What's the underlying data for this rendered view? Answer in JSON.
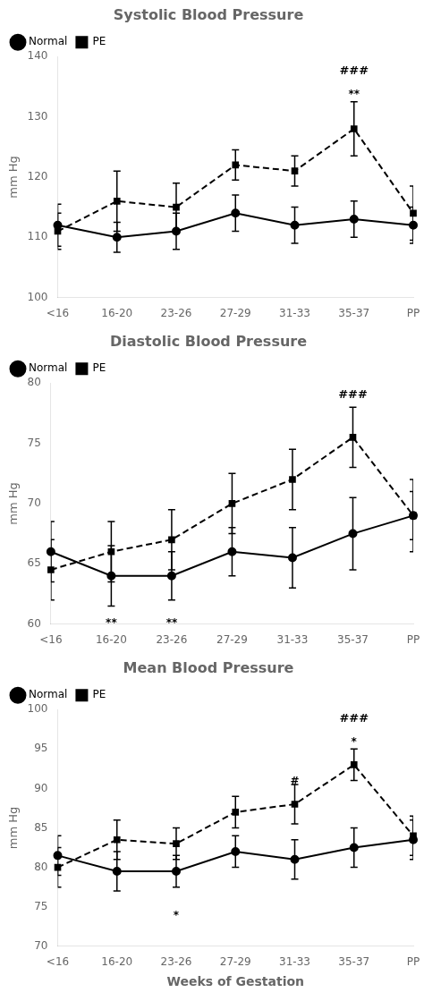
{
  "chart_data": [
    {
      "type": "line",
      "title": "Systolic Blood Pressure",
      "y_label": "mm Hg",
      "categories": [
        "<16",
        "16-20",
        "23-26",
        "27-29",
        "31-33",
        "35-37",
        "PP"
      ],
      "series": [
        {
          "name": "Normal",
          "color": "#000000",
          "marker": "circle",
          "line_style": "solid",
          "values": [
            112,
            110,
            111,
            114,
            112,
            113,
            112
          ],
          "errors": [
            3.5,
            2.5,
            3.0,
            3.0,
            3.0,
            3.0,
            3.0
          ]
        },
        {
          "name": "PE",
          "color": "#000000",
          "marker": "square",
          "line_style": "dashed",
          "values": [
            111,
            116,
            115,
            122,
            121,
            128,
            114
          ],
          "errors": [
            3.0,
            5.0,
            4.0,
            2.5,
            2.5,
            4.5,
            4.5
          ]
        }
      ],
      "ylim": [
        100,
        140
      ],
      "yticks": [
        100,
        110,
        120,
        130,
        140
      ],
      "grid": false,
      "legend": "upper left",
      "annotations": [
        {
          "x": "35-37",
          "y": 138.5,
          "text": "###"
        },
        {
          "x": "35-37",
          "y": 134.5,
          "text": "**"
        }
      ]
    },
    {
      "type": "line",
      "title": "Diastolic Blood Pressure",
      "y_label": "mm Hg",
      "categories": [
        "<16",
        "16-20",
        "23-26",
        "27-29",
        "31-33",
        "35-37",
        "PP"
      ],
      "series": [
        {
          "name": "Normal",
          "color": "#000000",
          "marker": "circle",
          "line_style": "solid",
          "values": [
            66,
            64,
            64,
            66,
            65.5,
            67.5,
            69
          ],
          "errors": [
            2.5,
            2.5,
            2.0,
            2.0,
            2.5,
            3.0,
            3.0
          ]
        },
        {
          "name": "PE",
          "color": "#000000",
          "marker": "square",
          "line_style": "dashed",
          "values": [
            64.5,
            66,
            67,
            70,
            72,
            75.5,
            69
          ],
          "errors": [
            2.5,
            2.5,
            2.5,
            2.5,
            2.5,
            2.5,
            2.0
          ]
        }
      ],
      "ylim": [
        60,
        80
      ],
      "yticks": [
        60,
        65,
        70,
        75,
        80
      ],
      "grid": false,
      "legend": "upper left",
      "annotations": [
        {
          "x": "35-37",
          "y": 79.5,
          "text": "###"
        },
        {
          "x": "16-20",
          "y": 60.5,
          "text": "**"
        },
        {
          "x": "23-26",
          "y": 60.5,
          "text": "**"
        }
      ]
    },
    {
      "type": "line",
      "title": "Mean Blood Pressure",
      "y_label": "mm Hg",
      "x_label": "Weeks of Gestation",
      "categories": [
        "<16",
        "16-20",
        "23-26",
        "27-29",
        "31-33",
        "35-37",
        "PP"
      ],
      "series": [
        {
          "name": "Normal",
          "color": "#000000",
          "marker": "circle",
          "line_style": "solid",
          "values": [
            81.5,
            79.5,
            79.5,
            82,
            81,
            82.5,
            83.5
          ],
          "errors": [
            2.5,
            2.5,
            2.0,
            2.0,
            2.5,
            2.5,
            2.5
          ]
        },
        {
          "name": "PE",
          "color": "#000000",
          "marker": "square",
          "line_style": "dashed",
          "values": [
            80,
            83.5,
            83,
            87,
            88,
            93,
            84
          ],
          "errors": [
            2.5,
            2.5,
            2.0,
            2.0,
            2.5,
            2.0,
            2.5
          ]
        }
      ],
      "ylim": [
        70,
        100
      ],
      "yticks": [
        70,
        75,
        80,
        85,
        90,
        95,
        100
      ],
      "grid": false,
      "legend": "upper left",
      "annotations": [
        {
          "x": "35-37",
          "y": 99.5,
          "text": "###"
        },
        {
          "x": "35-37",
          "y": 96.5,
          "text": "*"
        },
        {
          "x": "31-33",
          "y": 91.5,
          "text": "#"
        },
        {
          "x": "23-26",
          "y": 74.5,
          "text": "*"
        }
      ]
    }
  ]
}
